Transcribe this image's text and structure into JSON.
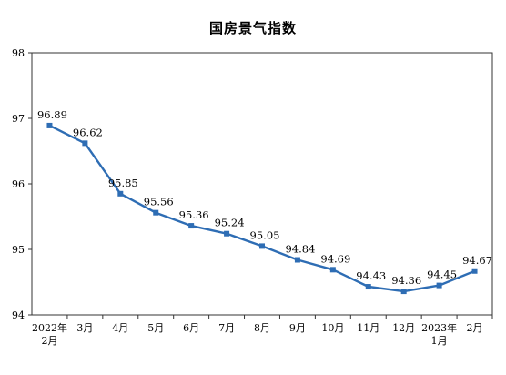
{
  "chart_data": {
    "type": "line",
    "title": "国房景气指数",
    "xlabel": "",
    "ylabel": "",
    "ylim": [
      94,
      98
    ],
    "yticks": [
      94,
      95,
      96,
      97,
      98
    ],
    "grid": false,
    "legend": "none",
    "categories": [
      [
        "2022年",
        "2月"
      ],
      [
        "3月"
      ],
      [
        "4月"
      ],
      [
        "5月"
      ],
      [
        "6月"
      ],
      [
        "7月"
      ],
      [
        "8月"
      ],
      [
        "9月"
      ],
      [
        "10月"
      ],
      [
        "11月"
      ],
      [
        "12月"
      ],
      [
        "2023年",
        "1月"
      ],
      [
        "2月"
      ]
    ],
    "series": [
      {
        "values": [
          96.89,
          96.62,
          95.85,
          95.56,
          95.36,
          95.24,
          95.05,
          94.84,
          94.69,
          94.43,
          94.36,
          94.45,
          94.67
        ],
        "labels": [
          "96.89",
          "96.62",
          "95.85",
          "95.56",
          "95.36",
          "95.24",
          "95.05",
          "94.84",
          "94.69",
          "94.43",
          "94.36",
          "94.45",
          "94.67"
        ],
        "color": "#2e6db4"
      }
    ],
    "colors": {
      "line": "#2e6db4",
      "axis": "#333333"
    }
  }
}
